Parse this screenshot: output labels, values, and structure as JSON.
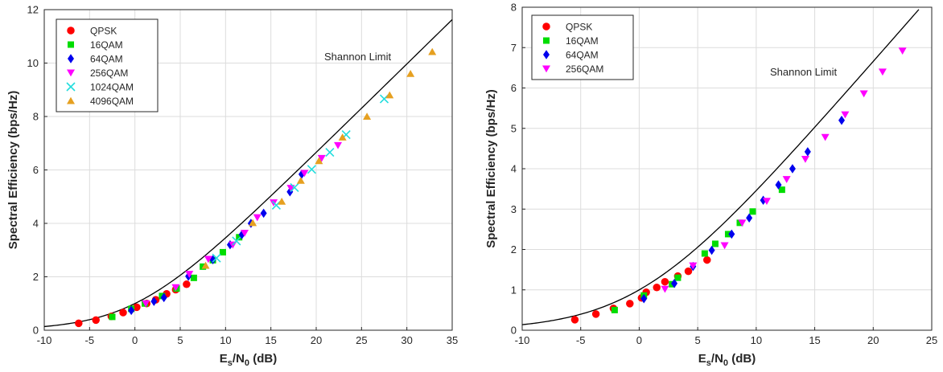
{
  "chart_data": [
    {
      "type": "scatter",
      "xlabel": "Es/N0 (dB)",
      "ylabel": "Spectral Efficiency (bps/Hz)",
      "xlim": [
        -10,
        35
      ],
      "ylim": [
        0,
        12
      ],
      "xticks": [
        -10,
        -5,
        0,
        5,
        10,
        15,
        20,
        25,
        30,
        35
      ],
      "yticks": [
        0,
        2,
        4,
        6,
        8,
        10,
        12
      ],
      "grid": true,
      "legend_position": "top-left",
      "curve_label": "Shannon Limit",
      "curve_xmax": 35,
      "series": [
        {
          "name": "QPSK",
          "marker": "circle",
          "color": "#ff0000",
          "points": [
            [
              -6.2,
              0.26
            ],
            [
              -4.3,
              0.38
            ],
            [
              -2.6,
              0.52
            ],
            [
              -1.3,
              0.66
            ],
            [
              0.2,
              0.86
            ],
            [
              1.3,
              1.0
            ],
            [
              2.3,
              1.14
            ],
            [
              3.5,
              1.36
            ],
            [
              4.5,
              1.52
            ],
            [
              5.7,
              1.72
            ]
          ]
        },
        {
          "name": "16QAM",
          "marker": "square",
          "color": "#00dd00",
          "points": [
            [
              -2.5,
              0.5
            ],
            [
              -0.4,
              0.8
            ],
            [
              1.1,
              1.0
            ],
            [
              3.0,
              1.28
            ],
            [
              4.6,
              1.56
            ],
            [
              6.5,
              1.96
            ],
            [
              7.5,
              2.38
            ],
            [
              8.6,
              2.62
            ],
            [
              9.7,
              2.92
            ],
            [
              11.5,
              3.48
            ]
          ]
        },
        {
          "name": "64QAM",
          "marker": "diamond",
          "color": "#0000ee",
          "points": [
            [
              -0.4,
              0.74
            ],
            [
              2.1,
              1.08
            ],
            [
              3.2,
              1.22
            ],
            [
              5.9,
              2.02
            ],
            [
              8.6,
              2.64
            ],
            [
              10.5,
              3.2
            ],
            [
              11.8,
              3.58
            ],
            [
              12.8,
              4.0
            ],
            [
              14.2,
              4.38
            ],
            [
              17.1,
              5.18
            ],
            [
              18.4,
              5.84
            ]
          ]
        },
        {
          "name": "256QAM",
          "marker": "triangle-down",
          "color": "#ff00ff",
          "points": [
            [
              1.2,
              1.0
            ],
            [
              4.5,
              1.6
            ],
            [
              6.0,
              2.1
            ],
            [
              8.1,
              2.66
            ],
            [
              10.8,
              3.2
            ],
            [
              12.1,
              3.64
            ],
            [
              13.5,
              4.22
            ],
            [
              15.3,
              4.78
            ],
            [
              17.2,
              5.32
            ],
            [
              18.7,
              5.88
            ],
            [
              20.6,
              6.44
            ],
            [
              22.4,
              6.92
            ]
          ]
        },
        {
          "name": "1024QAM",
          "marker": "x",
          "color": "#22dddd",
          "points": [
            [
              9.0,
              2.7
            ],
            [
              11.2,
              3.34
            ],
            [
              15.6,
              4.68
            ],
            [
              17.6,
              5.34
            ],
            [
              19.5,
              6.02
            ],
            [
              21.5,
              6.66
            ],
            [
              23.3,
              7.32
            ],
            [
              27.5,
              8.66
            ]
          ]
        },
        {
          "name": "4096QAM",
          "marker": "triangle-up",
          "color": "#e6a020",
          "points": [
            [
              7.8,
              2.42
            ],
            [
              13.0,
              4.02
            ],
            [
              16.2,
              4.82
            ],
            [
              18.3,
              5.6
            ],
            [
              20.3,
              6.34
            ],
            [
              22.9,
              7.22
            ],
            [
              25.6,
              8.0
            ],
            [
              28.1,
              8.8
            ],
            [
              30.4,
              9.6
            ],
            [
              32.8,
              10.42
            ]
          ]
        }
      ]
    },
    {
      "type": "scatter",
      "xlabel": "Es/N0 (dB)",
      "ylabel": "Spectral Efficiency (bps/Hz)",
      "xlim": [
        -10,
        25
      ],
      "ylim": [
        0,
        8
      ],
      "xticks": [
        -10,
        -5,
        0,
        5,
        10,
        15,
        20,
        25
      ],
      "yticks": [
        0,
        1,
        2,
        3,
        4,
        5,
        6,
        7,
        8
      ],
      "grid": true,
      "legend_position": "top-left",
      "curve_label": "Shannon Limit",
      "curve_xmax": 23.9,
      "series": [
        {
          "name": "QPSK",
          "marker": "circle",
          "color": "#ff0000",
          "points": [
            [
              -5.5,
              0.26
            ],
            [
              -3.7,
              0.4
            ],
            [
              -2.2,
              0.54
            ],
            [
              -0.8,
              0.66
            ],
            [
              0.2,
              0.8
            ],
            [
              0.6,
              0.94
            ],
            [
              1.5,
              1.06
            ],
            [
              2.2,
              1.2
            ],
            [
              3.3,
              1.34
            ],
            [
              4.2,
              1.46
            ],
            [
              5.8,
              1.74
            ]
          ]
        },
        {
          "name": "16QAM",
          "marker": "square",
          "color": "#00dd00",
          "points": [
            [
              -2.1,
              0.5
            ],
            [
              0.4,
              0.86
            ],
            [
              2.8,
              1.14
            ],
            [
              3.3,
              1.3
            ],
            [
              5.6,
              1.9
            ],
            [
              6.5,
              2.14
            ],
            [
              7.6,
              2.38
            ],
            [
              8.6,
              2.66
            ],
            [
              9.7,
              2.94
            ],
            [
              12.2,
              3.48
            ]
          ]
        },
        {
          "name": "64QAM",
          "marker": "diamond",
          "color": "#0000ee",
          "points": [
            [
              0.4,
              0.78
            ],
            [
              3.0,
              1.16
            ],
            [
              4.6,
              1.58
            ],
            [
              6.2,
              1.98
            ],
            [
              7.9,
              2.38
            ],
            [
              9.4,
              2.78
            ],
            [
              10.6,
              3.22
            ],
            [
              11.9,
              3.6
            ],
            [
              13.1,
              4.0
            ],
            [
              14.4,
              4.42
            ],
            [
              17.3,
              5.2
            ]
          ]
        },
        {
          "name": "256QAM",
          "marker": "triangle-down",
          "color": "#ff00ff",
          "points": [
            [
              2.2,
              1.02
            ],
            [
              4.6,
              1.6
            ],
            [
              7.3,
              2.1
            ],
            [
              8.8,
              2.66
            ],
            [
              10.9,
              3.2
            ],
            [
              12.6,
              3.74
            ],
            [
              14.2,
              4.24
            ],
            [
              15.9,
              4.78
            ],
            [
              17.6,
              5.34
            ],
            [
              19.2,
              5.86
            ],
            [
              20.8,
              6.4
            ],
            [
              22.5,
              6.92
            ]
          ]
        }
      ]
    }
  ]
}
